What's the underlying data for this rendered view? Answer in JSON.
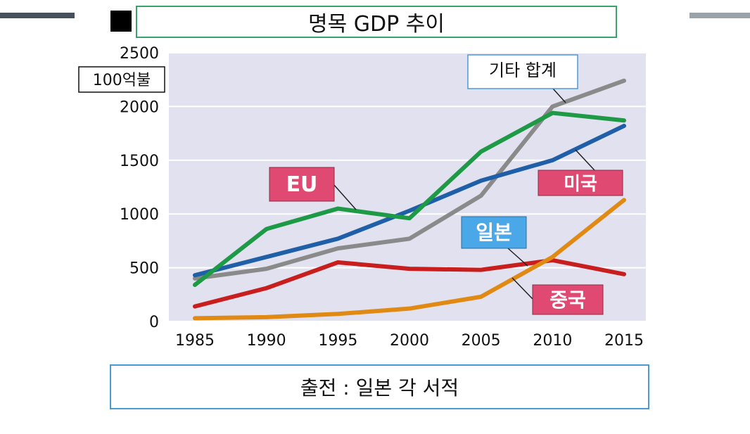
{
  "title": "명목 GDP 추이",
  "source": "출전 : 일본 각 서적",
  "colors": {
    "plot_bg": "#e1e1ef",
    "grid": "#ffffff",
    "eu": "#1e9a46",
    "usa": "#1f5fa8",
    "others": "#8a8a8a",
    "japan": "#c81e1e",
    "china": "#e08a14",
    "label_pink": "#e04a72",
    "label_blue": "#4aa8e8"
  },
  "chart_data": {
    "type": "line",
    "title": "명목 GDP 추이",
    "ylabel": "100억불",
    "xlabel": "",
    "x": [
      1985,
      1990,
      1995,
      2000,
      2005,
      2010,
      2015
    ],
    "ylim": [
      0,
      2500
    ],
    "yticks": [
      0,
      500,
      1000,
      1500,
      2000,
      2500
    ],
    "grid": true,
    "series": [
      {
        "key": "others",
        "name": "기타 합계",
        "values": [
          400,
          490,
          680,
          770,
          1170,
          2000,
          2240
        ]
      },
      {
        "key": "usa",
        "name": "미국",
        "values": [
          430,
          600,
          770,
          1030,
          1310,
          1500,
          1820
        ]
      },
      {
        "key": "eu",
        "name": "EU",
        "values": [
          340,
          860,
          1050,
          960,
          1580,
          1940,
          1870
        ]
      },
      {
        "key": "japan",
        "name": "일본",
        "values": [
          140,
          310,
          550,
          490,
          480,
          570,
          440
        ]
      },
      {
        "key": "china",
        "name": "중국",
        "values": [
          30,
          40,
          70,
          120,
          230,
          600,
          1130
        ]
      }
    ]
  }
}
